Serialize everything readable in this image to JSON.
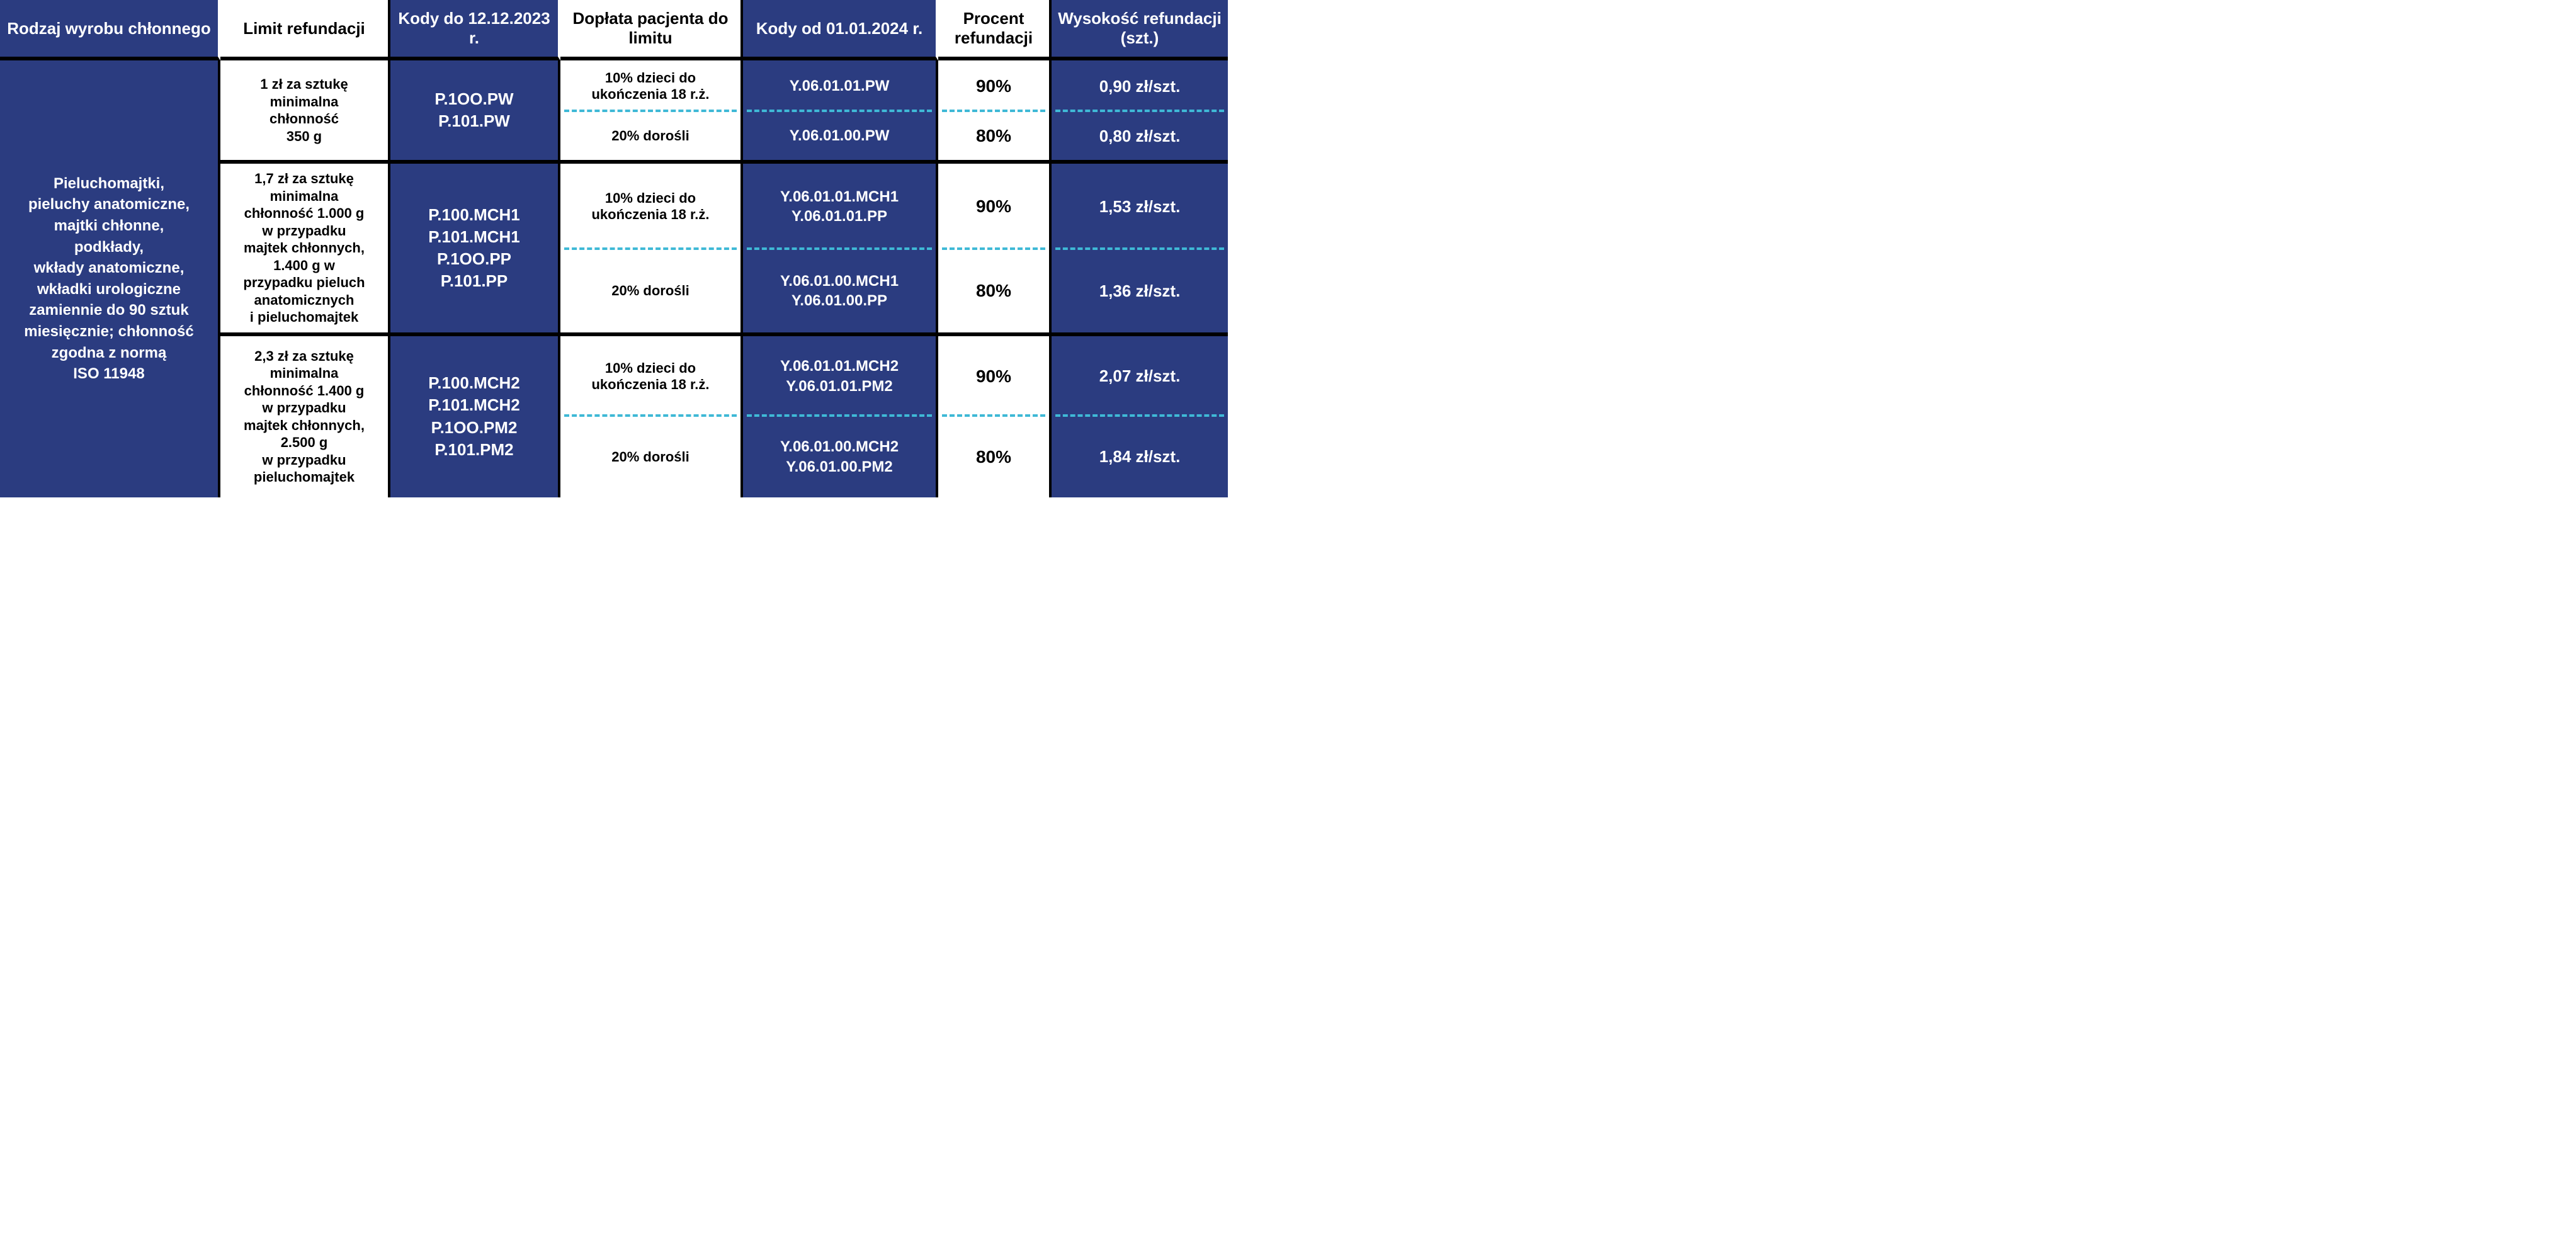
{
  "colors": {
    "blue": "#2b3c80",
    "white": "#ffffff",
    "black": "#000000",
    "dash": "#3fb9d6"
  },
  "headers": {
    "col1": "Rodzaj wyrobu chłonnego",
    "col2": "Limit refundacji",
    "col3": "Kody do 12.12.2023 r.",
    "col4": "Dopłata pacjenta do limitu",
    "col5": "Kody od 01.01.2024 r.",
    "col6": "Procent refundacji",
    "col7": "Wysokość refundacji (szt.)"
  },
  "rodzaj": "Pieluchomajtki,\npieluchy anatomiczne,\nmajtki chłonne,\npodkłady,\nwkłady anatomiczne,\nwkładki urologiczne\nzamiennie do 90 sztuk\nmiesięcznie; chłonność\nzgodna z normą\nISO 11948",
  "groups": [
    {
      "limit": "1 zł za sztukę\nminimalna\nchłonność\n350 g",
      "codes_old": "P.1OO.PW\nP.101.PW",
      "sub": [
        {
          "doplata": "10% dzieci do\nukończenia 18 r.ż.",
          "codes_new": "Y.06.01.01.PW",
          "procent": "90%",
          "wys": "0,90 zł/szt."
        },
        {
          "doplata": "20% dorośli",
          "codes_new": "Y.06.01.00.PW",
          "procent": "80%",
          "wys": "0,80 zł/szt."
        }
      ]
    },
    {
      "limit": "1,7 zł za sztukę\nminimalna\nchłonność 1.000 g\nw przypadku\nmajtek chłonnych,\n1.400 g w\nprzypadku pieluch\nanatomicznych\ni pieluchomajtek",
      "codes_old": "P.100.MCH1\nP.101.MCH1\nP.1OO.PP\nP.101.PP",
      "sub": [
        {
          "doplata": "10% dzieci do\nukończenia 18 r.ż.",
          "codes_new": "Y.06.01.01.MCH1\nY.06.01.01.PP",
          "procent": "90%",
          "wys": "1,53 zł/szt."
        },
        {
          "doplata": "20% dorośli",
          "codes_new": "Y.06.01.00.MCH1\nY.06.01.00.PP",
          "procent": "80%",
          "wys": "1,36 zł/szt."
        }
      ]
    },
    {
      "limit": "2,3 zł za sztukę\nminimalna\nchłonność 1.400 g\nw przypadku\nmajtek chłonnych,\n2.500 g\nw przypadku\npieluchomajtek",
      "codes_old": "P.100.MCH2\nP.101.MCH2\nP.1OO.PM2\nP.101.PM2",
      "sub": [
        {
          "doplata": "10% dzieci do\nukończenia 18 r.ż.",
          "codes_new": "Y.06.01.01.MCH2\nY.06.01.01.PM2",
          "procent": "90%",
          "wys": "2,07 zł/szt."
        },
        {
          "doplata": "20% dorośli",
          "codes_new": "Y.06.01.00.MCH2\nY.06.01.00.PM2",
          "procent": "80%",
          "wys": "1,84 zł/szt."
        }
      ]
    }
  ]
}
